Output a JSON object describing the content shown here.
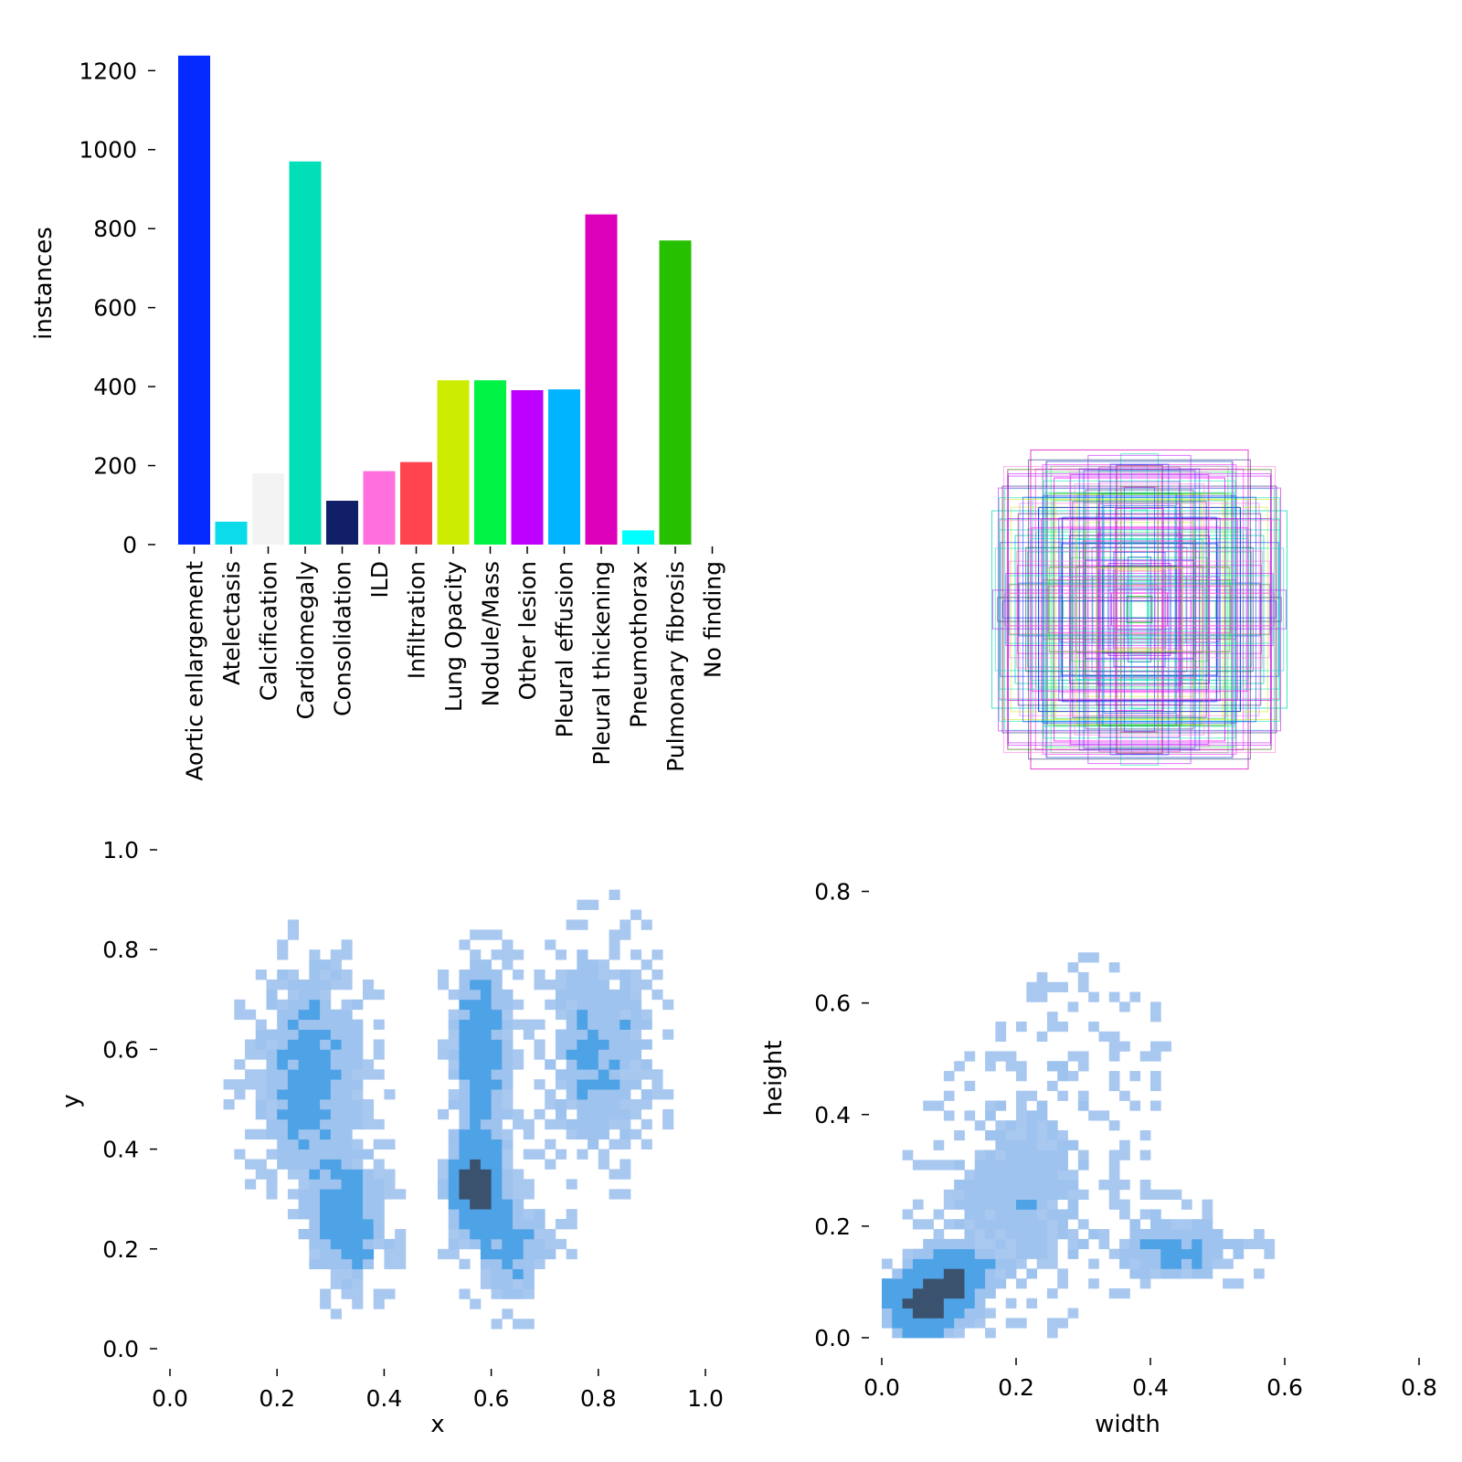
{
  "chart_data": [
    {
      "type": "bar",
      "ylabel": "instances",
      "ylim": [
        0,
        1240
      ],
      "yticks": [
        0,
        200,
        400,
        600,
        800,
        1000,
        1200
      ],
      "categories": [
        "Aortic enlargement",
        "Atelectasis",
        "Calcification",
        "Cardiomegaly",
        "Consolidation",
        "ILD",
        "Infiltration",
        "Lung Opacity",
        "Nodule/Mass",
        "Other lesion",
        "Pleural effusion",
        "Pleural thickening",
        "Pneumothorax",
        "Pulmonary fibrosis",
        "No finding"
      ],
      "values": [
        1238,
        58,
        180,
        970,
        111,
        186,
        209,
        416,
        416,
        391,
        393,
        836,
        36,
        770,
        0
      ],
      "colors": [
        "#042aff",
        "#0bdbeb",
        "#f3f3f3",
        "#00dfb7",
        "#111f68",
        "#ff6fdd",
        "#ff444f",
        "#cced00",
        "#00f344",
        "#bd00ff",
        "#00b4ff",
        "#dd00ba",
        "#00ffff",
        "#26c000",
        "#01ffb3"
      ]
    },
    {
      "type": "boxes",
      "description_note": "overlaid bounding boxes centered at (0.5,0.5)",
      "box_sizes_wh": [
        [
          0.18,
          0.1
        ],
        [
          0.3,
          0.2
        ],
        [
          0.5,
          0.4
        ],
        [
          0.72,
          0.35
        ],
        [
          0.8,
          0.45
        ],
        [
          0.9,
          0.55
        ],
        [
          0.95,
          0.6
        ],
        [
          0.55,
          0.8
        ],
        [
          0.6,
          0.9
        ],
        [
          0.7,
          0.97
        ],
        [
          0.35,
          0.3
        ],
        [
          0.25,
          0.5
        ],
        [
          0.4,
          0.7
        ],
        [
          0.85,
          0.85
        ],
        [
          0.65,
          0.62
        ],
        [
          0.45,
          0.45
        ],
        [
          0.12,
          0.15
        ],
        [
          0.08,
          0.08
        ],
        [
          0.06,
          0.05
        ],
        [
          0.2,
          0.28
        ]
      ],
      "box_colors": [
        "#ff00ff",
        "#00dfb7",
        "#042aff",
        "#00dfb7",
        "#00dfb7",
        "#00dfb7",
        "#00dfb7",
        "#ff00ff",
        "#bd00ff",
        "#dd00ba",
        "#042aff",
        "#ff6fdd",
        "#cced00",
        "#ff6fdd",
        "#042aff",
        "#111f68",
        "#ff444f",
        "#26c000",
        "#00f344",
        "#bd00ff"
      ]
    },
    {
      "type": "heatmap",
      "xlabel": "x",
      "ylabel": "y",
      "xlim": [
        0,
        1
      ],
      "ylim": [
        0,
        1
      ],
      "xticks": [
        "0.0",
        "0.2",
        "0.4",
        "0.6",
        "0.8",
        "1.0"
      ],
      "yticks": [
        "0.0",
        "0.2",
        "0.4",
        "0.6",
        "0.8",
        "1.0"
      ],
      "clusters": [
        {
          "x": 0.26,
          "y": 0.55,
          "sx": 0.065,
          "sy": 0.14,
          "w": 1.0
        },
        {
          "x": 0.33,
          "y": 0.25,
          "sx": 0.05,
          "sy": 0.08,
          "w": 1.1
        },
        {
          "x": 0.57,
          "y": 0.33,
          "sx": 0.035,
          "sy": 0.06,
          "w": 2.2
        },
        {
          "x": 0.58,
          "y": 0.6,
          "sx": 0.035,
          "sy": 0.11,
          "w": 1.3
        },
        {
          "x": 0.8,
          "y": 0.6,
          "sx": 0.065,
          "sy": 0.14,
          "w": 0.8
        },
        {
          "x": 0.64,
          "y": 0.2,
          "sx": 0.05,
          "sy": 0.07,
          "w": 0.8
        }
      ]
    },
    {
      "type": "heatmap",
      "xlabel": "width",
      "ylabel": "height",
      "xlim": [
        0,
        0.8
      ],
      "ylim": [
        0,
        0.85
      ],
      "xticks": [
        "0.0",
        "0.2",
        "0.4",
        "0.6",
        "0.8"
      ],
      "yticks": [
        "0.0",
        "0.2",
        "0.4",
        "0.6",
        "0.8"
      ],
      "clusters": [
        {
          "x": 0.06,
          "y": 0.06,
          "sx": 0.04,
          "sy": 0.04,
          "w": 2.0
        },
        {
          "x": 0.11,
          "y": 0.11,
          "sx": 0.03,
          "sy": 0.03,
          "w": 1.6
        },
        {
          "x": 0.2,
          "y": 0.25,
          "sx": 0.08,
          "sy": 0.12,
          "w": 0.6
        },
        {
          "x": 0.44,
          "y": 0.16,
          "sx": 0.06,
          "sy": 0.04,
          "w": 0.9
        },
        {
          "x": 0.3,
          "y": 0.5,
          "sx": 0.08,
          "sy": 0.12,
          "w": 0.2
        }
      ]
    }
  ]
}
